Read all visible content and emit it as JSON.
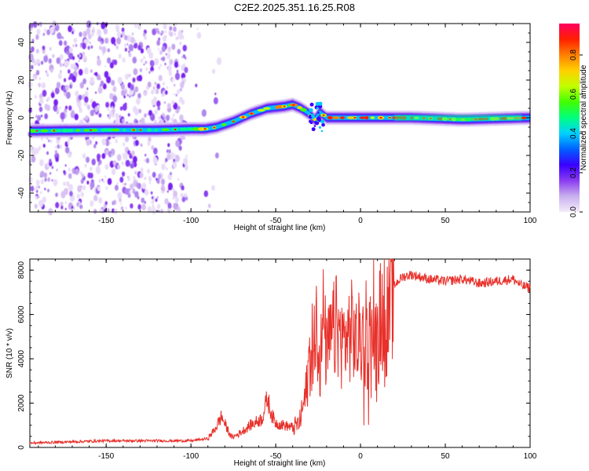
{
  "title": "C2E2.2025.351.16.25.R08",
  "colorbar": {
    "label": "Normalized spectral amplitude",
    "ticks": [
      "0.0",
      "0.2",
      "0.4",
      "0.6",
      "0.8"
    ],
    "stops": [
      "#f4ecfa",
      "#c9b0ee",
      "#8a3cf0",
      "#3a00ff",
      "#0060ff",
      "#00d0ff",
      "#00ff80",
      "#40ff00",
      "#c0ff00",
      "#ffd000",
      "#ff8000",
      "#ff2000",
      "#ff0060"
    ]
  },
  "chart_data": [
    {
      "type": "heatmap",
      "name": "spectrogram",
      "xlabel": "Height of straight line (km)",
      "ylabel": "Frequency (Hz)",
      "xlim": [
        -195,
        100
      ],
      "ylim": [
        -50,
        50
      ],
      "x_ticks": [
        "-150",
        "-100",
        "-50",
        "0",
        "50",
        "100"
      ],
      "y_ticks": [
        "-40",
        "-20",
        "0",
        "20",
        "40"
      ],
      "ridge": {
        "x": [
          -195,
          -150,
          -120,
          -100,
          -92,
          -85,
          -75,
          -65,
          -55,
          -45,
          -40,
          -35,
          -30,
          -27,
          -24,
          -20,
          -10,
          0,
          10,
          30,
          60,
          100
        ],
        "y": [
          -7,
          -6.5,
          -6.5,
          -6,
          -6,
          -5,
          -2,
          2,
          5,
          6,
          7,
          5,
          2,
          -1,
          3,
          0,
          0,
          0,
          0,
          0,
          -1,
          0
        ]
      },
      "noise_region_x": [
        -195,
        -82
      ]
    },
    {
      "type": "line",
      "name": "snr",
      "xlabel": "Height of straight line (km)",
      "ylabel": "SNR (10 * v/v)",
      "xlim": [
        -195,
        100
      ],
      "ylim": [
        0,
        8500
      ],
      "x_ticks": [
        "-150",
        "-100",
        "-50",
        "0",
        "50",
        "100"
      ],
      "y_ticks": [
        "0",
        "2000",
        "4000",
        "6000",
        "8000"
      ],
      "color": "#e8302a",
      "series": [
        {
          "name": "SNR",
          "x": [
            -195,
            -150,
            -100,
            -90,
            -86,
            -82,
            -79,
            -76,
            -72,
            -65,
            -58,
            -55,
            -52,
            -50,
            -45,
            -40,
            -36,
            -32,
            -30,
            -28,
            -26,
            -24,
            -22,
            -20,
            -17,
            -14,
            -11,
            -8,
            -5,
            -2,
            0,
            3,
            6,
            9,
            12,
            15,
            18,
            20,
            22,
            25,
            30,
            40,
            50,
            60,
            70,
            80,
            90,
            95,
            100
          ],
          "y": [
            200,
            300,
            300,
            400,
            800,
            1400,
            900,
            450,
            600,
            1000,
            1300,
            2200,
            1400,
            1100,
            1000,
            900,
            1100,
            2500,
            4200,
            3800,
            6500,
            3500,
            5800,
            4200,
            5000,
            5500,
            4700,
            5000,
            5300,
            4600,
            5100,
            4300,
            5200,
            4600,
            6100,
            5600,
            6600,
            7300,
            7500,
            7700,
            7800,
            7600,
            7500,
            7600,
            7400,
            7500,
            7600,
            7300,
            7200
          ]
        }
      ]
    }
  ]
}
